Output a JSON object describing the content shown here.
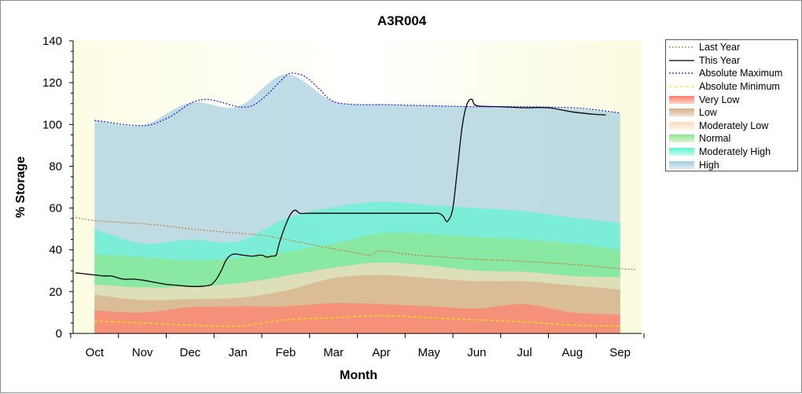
{
  "chart_data": {
    "type": "area",
    "title": "A3R004",
    "xlabel": "Month",
    "ylabel": "% Storage",
    "ylim": [
      0,
      140
    ],
    "yticks": [
      0,
      20,
      40,
      60,
      80,
      100,
      120,
      140
    ],
    "xlim": [
      -0.45,
      11.45
    ],
    "x_tick_labels": [
      "Oct",
      "Nov",
      "Dec",
      "Jan",
      "Feb",
      "Mar",
      "Apr",
      "May",
      "Jun",
      "Jul",
      "Aug",
      "Sep"
    ],
    "grid": false,
    "legend_position": "right",
    "band_x": [
      0,
      1,
      2,
      3,
      4,
      5,
      6,
      7,
      8,
      9,
      10,
      11
    ],
    "series": [
      {
        "name": "Last Year",
        "kind": "line",
        "color": "#c87a3a",
        "dash": "2,2",
        "x": [
          -0.4,
          0,
          1,
          1.5,
          2,
          3,
          3.5,
          4,
          5,
          5.5,
          5.75,
          6,
          6.5,
          7,
          8,
          9,
          10,
          10.5,
          11,
          11.35
        ],
        "y": [
          55.5,
          54,
          52.5,
          51.5,
          50,
          48,
          47,
          45,
          40.5,
          38.5,
          37.5,
          39.5,
          38,
          37,
          35.5,
          34.5,
          33,
          32,
          31,
          30.5
        ]
      },
      {
        "name": "This Year",
        "kind": "line",
        "color": "#000000",
        "dash": "",
        "x": [
          -0.4,
          0,
          0.2,
          0.35,
          0.6,
          0.8,
          1,
          1.25,
          1.5,
          1.75,
          2,
          2.2,
          2.35,
          2.45,
          2.55,
          2.65,
          2.75,
          2.85,
          2.95,
          3.1,
          3.3,
          3.5,
          3.6,
          3.7,
          3.8,
          3.85,
          3.92,
          4.0,
          4.1,
          4.2,
          4.3,
          4.5,
          5,
          6,
          7,
          7.2,
          7.3,
          7.35,
          7.4,
          7.5,
          7.6,
          7.7,
          7.8,
          7.9,
          8,
          8.5,
          9,
          9.5,
          10,
          10.4,
          10.7
        ],
        "y": [
          29,
          28,
          27.5,
          27.5,
          26,
          26,
          25.5,
          24.5,
          23.5,
          23,
          22.5,
          22.5,
          22.8,
          23.5,
          26,
          30,
          35,
          37.5,
          38,
          37.5,
          37,
          37.5,
          36.5,
          37,
          37.5,
          42,
          47,
          52,
          57,
          59,
          57.5,
          57.5,
          57.5,
          57.5,
          57.5,
          57.5,
          56,
          54,
          54,
          60,
          80,
          100,
          110,
          112,
          109,
          108.5,
          108,
          108,
          106,
          105,
          104.5
        ]
      },
      {
        "name": "Absolute Maximum",
        "kind": "line",
        "color": "#1a1ad9",
        "dash": "2,2",
        "x": [
          0,
          0.3,
          0.6,
          0.9,
          1.2,
          1.6,
          2,
          2.3,
          2.6,
          3,
          3.3,
          3.6,
          3.9,
          4.1,
          4.4,
          4.7,
          5,
          5.5,
          6,
          7,
          8,
          9,
          10,
          10.5,
          11
        ],
        "y": [
          102,
          101,
          100,
          99.5,
          100,
          104,
          110,
          112,
          111,
          108.5,
          109,
          114,
          121,
          124.5,
          123,
          117,
          111,
          109.5,
          109.5,
          109,
          108.5,
          108.5,
          108,
          107,
          105.5
        ]
      },
      {
        "name": "Absolute Minimum",
        "kind": "line",
        "color": "#ffee00",
        "dash": "4,3",
        "x": [
          0,
          1,
          2,
          3,
          4,
          5,
          6,
          7,
          8,
          9,
          10,
          11
        ],
        "y": [
          6,
          5,
          4,
          3.5,
          6.5,
          7.5,
          8.5,
          7.5,
          6.5,
          5.5,
          4,
          3.5
        ]
      },
      {
        "name": "Very Low",
        "kind": "band",
        "color": "#ff7f6b",
        "top": [
          11,
          10,
          12.5,
          13,
          13,
          14.5,
          14,
          13,
          12,
          14,
          10,
          9
        ]
      },
      {
        "name": "Low",
        "kind": "band",
        "color": "#d9ae88",
        "top": [
          18.5,
          16,
          16.5,
          17,
          20.5,
          26.5,
          28,
          26.5,
          25,
          25,
          23,
          21
        ]
      },
      {
        "name": "Moderately Low",
        "kind": "band",
        "color": "#ffdcc0",
        "top": [
          23.5,
          22,
          22.5,
          24,
          27.5,
          31.5,
          34,
          32.5,
          30,
          29.5,
          27.5,
          27
        ]
      },
      {
        "name": "Normal",
        "kind": "band",
        "color": "#8fe58a",
        "top": [
          38,
          36.5,
          35,
          36,
          39,
          43,
          48,
          47.5,
          46,
          45,
          43,
          40
        ]
      },
      {
        "name": "Moderately High",
        "kind": "band",
        "color": "#5ff5d2",
        "top": [
          50,
          43,
          45,
          44,
          55,
          60.5,
          63,
          61.5,
          60,
          58.5,
          55.5,
          53
        ]
      },
      {
        "name": "High",
        "kind": "band",
        "color": "#a4cde0",
        "top": [
          102,
          99.5,
          110.5,
          108.5,
          124,
          111,
          109.5,
          109,
          108.5,
          108,
          107.5,
          105.5
        ]
      }
    ]
  }
}
